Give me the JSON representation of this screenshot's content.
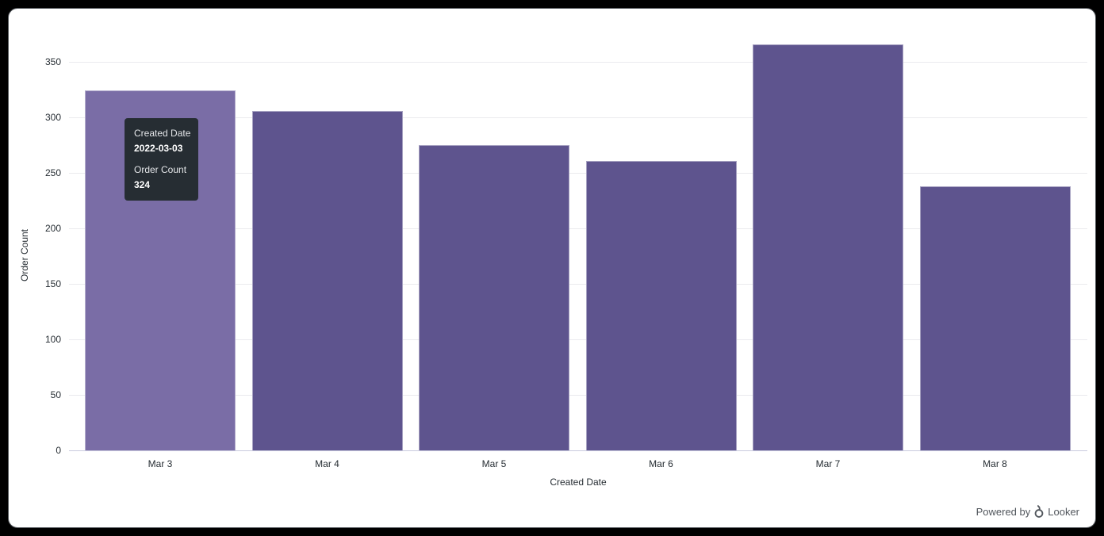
{
  "colors": {
    "outer_bg": "#000000",
    "card_bg": "#ffffff",
    "bar": "#5e548e",
    "bar_hover": "#7a6da6",
    "gridline": "#eaeaee",
    "baseline": "#c9cade",
    "axis_text": "#262d33",
    "tooltip_bg": "#262d33"
  },
  "chart_data": {
    "type": "bar",
    "title": "",
    "categories": [
      "Mar 3",
      "Mar 4",
      "Mar 5",
      "Mar 6",
      "Mar 7",
      "Mar 8"
    ],
    "values": [
      324,
      306,
      275,
      261,
      366,
      238
    ],
    "xlabel": "Created Date",
    "ylabel": "Order Count",
    "ylim": [
      0,
      370
    ],
    "yticks": [
      0,
      50,
      100,
      150,
      200,
      250,
      300,
      350
    ],
    "grid": true,
    "legend": "none",
    "hovered_index": 0
  },
  "tooltip": {
    "label1": "Created Date",
    "value1": "2022-03-03",
    "label2": "Order Count",
    "value2": "324"
  },
  "footer": {
    "powered_by": "Powered by",
    "brand": "Looker"
  }
}
